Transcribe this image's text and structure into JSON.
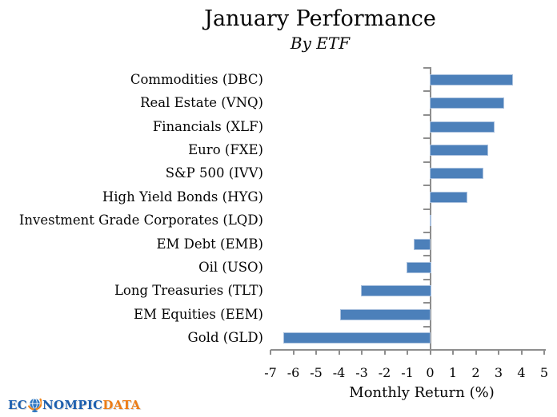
{
  "title": "January Performance",
  "subtitle": "By ETF",
  "x_axis_title": "Monthly Return (%)",
  "logo": {
    "text_blue_1": "EC",
    "globe_icon": "globe-icon",
    "text_blue_2": "NOMPIC",
    "text_orange": "DATA"
  },
  "colors": {
    "bar_fill": "#4c80ba",
    "bar_border": "#aac1de",
    "axis": "#8e8e8e",
    "logo_blue": "#1d5fae",
    "logo_orange": "#ed7d17"
  },
  "chart_data": {
    "type": "bar",
    "orientation": "horizontal",
    "title": "January Performance",
    "subtitle": "By ETF",
    "xlabel": "Monthly Return (%)",
    "ylabel": "",
    "xlim": [
      -7,
      5
    ],
    "xticks": [
      -7,
      -6,
      -5,
      -4,
      -3,
      -2,
      -1,
      0,
      1,
      2,
      3,
      4,
      5
    ],
    "grid": false,
    "legend": false,
    "categories": [
      "Commodities (DBC)",
      "Real Estate (VNQ)",
      "Financials (XLF)",
      "Euro (FXE)",
      "S&P 500 (IVV)",
      "High Yield Bonds (HYG)",
      "Investment Grade Corporates (LQD)",
      "EM Debt (EMB)",
      "Oil (USO)",
      "Long Treasuries (TLT)",
      "EM Equities (EEM)",
      "Gold (GLD)"
    ],
    "values": [
      3.6,
      3.2,
      2.8,
      2.5,
      2.3,
      1.6,
      0.0,
      -0.7,
      -1.0,
      -3.0,
      -3.9,
      -6.4
    ]
  }
}
